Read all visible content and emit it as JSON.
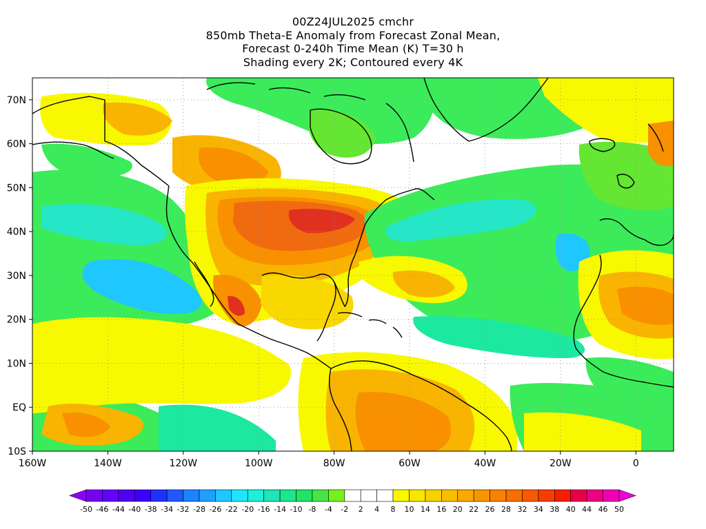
{
  "title": {
    "lines": [
      "00Z24JUL2025 cmchr",
      "850mb Theta-E Anomaly from Forecast Zonal Mean,",
      "Forecast 0-240h Time Mean (K) T=30 h",
      "Shading every 2K; Contoured every 4K"
    ]
  },
  "map": {
    "projection": "lat-lon",
    "lon_range": [
      -160,
      10
    ],
    "lat_range": [
      -10,
      75
    ],
    "x_ticks": [
      {
        "lon": -160,
        "label": "160W"
      },
      {
        "lon": -140,
        "label": "140W"
      },
      {
        "lon": -120,
        "label": "120W"
      },
      {
        "lon": -100,
        "label": "100W"
      },
      {
        "lon": -80,
        "label": "80W"
      },
      {
        "lon": -60,
        "label": "60W"
      },
      {
        "lon": -40,
        "label": "40W"
      },
      {
        "lon": -20,
        "label": "20W"
      },
      {
        "lon": 0,
        "label": "0"
      }
    ],
    "y_ticks": [
      {
        "lat": -10,
        "label": "10S"
      },
      {
        "lat": 0,
        "label": "EQ"
      },
      {
        "lat": 10,
        "label": "10N"
      },
      {
        "lat": 20,
        "label": "20N"
      },
      {
        "lat": 30,
        "label": "30N"
      },
      {
        "lat": 40,
        "label": "40N"
      },
      {
        "lat": 50,
        "label": "50N"
      },
      {
        "lat": 60,
        "label": "60N"
      },
      {
        "lat": 70,
        "label": "70N"
      }
    ],
    "colors": {
      "neutral": "#ffffff",
      "cyan": "#1ec8ff",
      "cyan_light": "#26e6c8",
      "green_blue": "#1ce8a0",
      "green": "#3ceb5a",
      "green_bright": "#64e632",
      "yellow": "#f8f800",
      "yellow_orange": "#f8d800",
      "orange_light": "#f8b400",
      "orange": "#f89000",
      "orange_red": "#f06a10",
      "red": "#e03020",
      "coast": "#000000"
    }
  },
  "colorbar": {
    "labels": [
      "-50",
      "-46",
      "-44",
      "-40",
      "-38",
      "-34",
      "-32",
      "-28",
      "-26",
      "-22",
      "-20",
      "-16",
      "-14",
      "-10",
      "-8",
      "-4",
      "-2",
      "2",
      "4",
      "8",
      "10",
      "14",
      "16",
      "20",
      "22",
      "26",
      "28",
      "32",
      "34",
      "38",
      "40",
      "44",
      "46",
      "50"
    ],
    "colors": [
      "#8c00ff",
      "#7800f0",
      "#6400ff",
      "#5000f0",
      "#3c00ff",
      "#1e32ff",
      "#1e5aff",
      "#1e82ff",
      "#1ea0ff",
      "#1ec8ff",
      "#1ee6ff",
      "#1ef0dc",
      "#1ee6b4",
      "#1ee68c",
      "#1ee664",
      "#46e646",
      "#78f01e",
      "#ffffff",
      "#ffffff",
      "#ffffff",
      "#f8f800",
      "#f8e600",
      "#f8d200",
      "#f8be00",
      "#f8aa00",
      "#f89600",
      "#f88200",
      "#f86e00",
      "#f85a00",
      "#f83c00",
      "#f81e00",
      "#e6004b",
      "#f00082",
      "#f000b4",
      "#f000dc"
    ]
  }
}
